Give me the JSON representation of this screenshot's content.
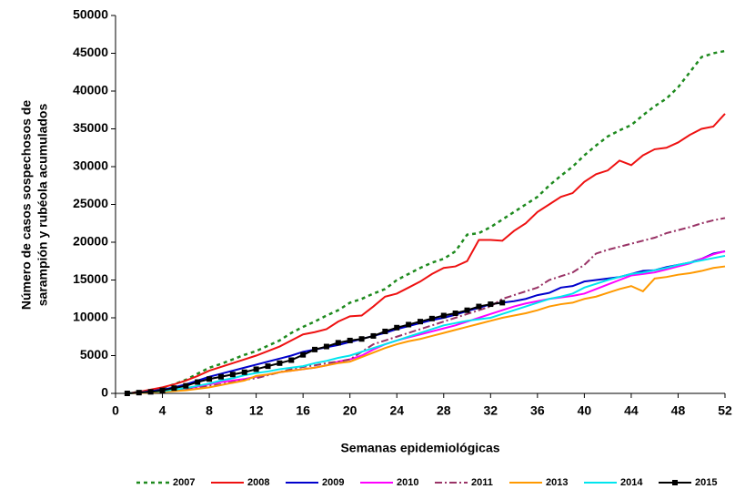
{
  "chart_data": {
    "type": "line",
    "xlabel": "Semanas epidemiológicas",
    "ylabel": [
      "Número de casos sospechosos de",
      "sarampión y rubéola acumulados"
    ],
    "x": [
      1,
      2,
      3,
      4,
      5,
      6,
      7,
      8,
      9,
      10,
      11,
      12,
      13,
      14,
      15,
      16,
      17,
      18,
      19,
      20,
      21,
      22,
      23,
      24,
      25,
      26,
      27,
      28,
      29,
      30,
      31,
      32,
      33,
      34,
      35,
      36,
      37,
      38,
      39,
      40,
      41,
      42,
      43,
      44,
      45,
      46,
      47,
      48,
      49,
      50,
      51,
      52
    ],
    "xlim": [
      0,
      52
    ],
    "xticks": [
      0,
      4,
      8,
      12,
      16,
      20,
      24,
      28,
      32,
      36,
      40,
      44,
      48,
      52
    ],
    "ylim": [
      0,
      50000
    ],
    "yticks": [
      0,
      5000,
      10000,
      15000,
      20000,
      25000,
      30000,
      35000,
      40000,
      45000,
      50000
    ],
    "grid": false,
    "legend": "bottom",
    "series": [
      {
        "name": "2007",
        "color": "#1e8a1e",
        "dash": "dotted",
        "values": [
          0,
          200,
          400,
          700,
          1200,
          1800,
          2600,
          3400,
          3900,
          4500,
          5100,
          5600,
          6300,
          7000,
          8000,
          8800,
          9500,
          10300,
          11000,
          12000,
          12500,
          13200,
          13800,
          15000,
          15800,
          16600,
          17300,
          17800,
          18800,
          21000,
          21200,
          22000,
          23000,
          24000,
          25000,
          26000,
          27500,
          28800,
          30000,
          31500,
          32800,
          34000,
          34800,
          35500,
          36800,
          38000,
          39000,
          40500,
          42500,
          44500,
          45000,
          45300
        ]
      },
      {
        "name": "2008",
        "color": "#ee1111",
        "dash": "solid",
        "values": [
          0,
          200,
          500,
          800,
          1200,
          1700,
          2300,
          3000,
          3500,
          4000,
          4500,
          5000,
          5600,
          6200,
          7000,
          7800,
          8100,
          8500,
          9500,
          10200,
          10300,
          11500,
          12800,
          13200,
          14000,
          14800,
          15800,
          16600,
          16800,
          17500,
          20300,
          20300,
          20200,
          21500,
          22500,
          24000,
          25000,
          26000,
          26500,
          28000,
          29000,
          29500,
          30800,
          30200,
          31500,
          32300,
          32500,
          33200,
          34200,
          35000,
          35300,
          37000
        ]
      },
      {
        "name": "2009",
        "color": "#0000cc",
        "dash": "solid",
        "values": [
          0,
          100,
          300,
          500,
          800,
          1200,
          1700,
          2200,
          2600,
          3000,
          3400,
          3800,
          4200,
          4600,
          5000,
          5500,
          5800,
          6100,
          6400,
          6800,
          7200,
          7600,
          8000,
          8500,
          8900,
          9300,
          9700,
          10000,
          10400,
          10900,
          11300,
          11800,
          12000,
          12200,
          12500,
          13000,
          13300,
          14000,
          14200,
          14800,
          15000,
          15200,
          15400,
          15800,
          16200,
          16300,
          16700,
          17000,
          17300,
          17800,
          18500,
          18800
        ]
      },
      {
        "name": "2010",
        "color": "#ff00ff",
        "dash": "solid",
        "values": [
          0,
          100,
          200,
          300,
          400,
          600,
          900,
          1200,
          1500,
          1700,
          1900,
          2200,
          2500,
          2800,
          3000,
          3200,
          3400,
          3700,
          4200,
          4500,
          5000,
          5800,
          6500,
          7000,
          7400,
          7800,
          8200,
          8600,
          9000,
          9500,
          10000,
          10500,
          11000,
          11500,
          11900,
          12200,
          12500,
          12700,
          12900,
          13200,
          13800,
          14400,
          15000,
          15600,
          15800,
          16000,
          16400,
          16800,
          17200,
          17800,
          18400,
          18800
        ]
      },
      {
        "name": "2011",
        "color": "#993366",
        "dash": "dashdot",
        "values": [
          0,
          100,
          200,
          300,
          400,
          500,
          700,
          1000,
          1200,
          1500,
          1800,
          2000,
          2400,
          2800,
          3200,
          3500,
          3700,
          4000,
          4200,
          4500,
          5500,
          6500,
          7000,
          7500,
          8000,
          8500,
          9000,
          9500,
          10000,
          10500,
          11000,
          11500,
          12500,
          13000,
          13500,
          14000,
          15000,
          15500,
          16000,
          17000,
          18500,
          19000,
          19400,
          19800,
          20200,
          20600,
          21200,
          21600,
          22000,
          22500,
          22900,
          23200
        ]
      },
      {
        "name": "2013",
        "color": "#ff9900",
        "dash": "solid",
        "values": [
          0,
          50,
          100,
          200,
          300,
          400,
          600,
          800,
          1100,
          1400,
          1700,
          2300,
          2500,
          2800,
          3000,
          3200,
          3400,
          3700,
          4000,
          4200,
          4800,
          5400,
          6000,
          6500,
          6900,
          7200,
          7600,
          8000,
          8400,
          8800,
          9200,
          9600,
          10000,
          10300,
          10600,
          11000,
          11500,
          11800,
          12000,
          12500,
          12800,
          13300,
          13800,
          14200,
          13500,
          15200,
          15400,
          15700,
          15900,
          16200,
          16600,
          16800
        ]
      },
      {
        "name": "2014",
        "color": "#00e5ee",
        "dash": "solid",
        "values": [
          0,
          100,
          200,
          300,
          500,
          700,
          1000,
          1300,
          1700,
          2000,
          2400,
          2700,
          2900,
          3200,
          3400,
          3600,
          4000,
          4300,
          4700,
          5000,
          5500,
          6000,
          6500,
          7000,
          7500,
          8000,
          8500,
          9000,
          9300,
          9600,
          9800,
          10000,
          10500,
          11000,
          11500,
          12000,
          12500,
          12800,
          13200,
          14000,
          14500,
          15000,
          15400,
          15800,
          16000,
          16300,
          16600,
          17000,
          17300,
          17600,
          17900,
          18200
        ]
      },
      {
        "name": "2015",
        "color": "#000000",
        "dash": "solid",
        "marker": "square",
        "values": [
          0,
          100,
          200,
          400,
          700,
          1000,
          1500,
          1900,
          2200,
          2500,
          2800,
          3200,
          3600,
          4000,
          4400,
          5100,
          5800,
          6200,
          6700,
          7000,
          7200,
          7600,
          8200,
          8700,
          9100,
          9500,
          9900,
          10300,
          10600,
          11000,
          11500,
          11800,
          12000,
          null,
          null,
          null,
          null,
          null,
          null,
          null,
          null,
          null,
          null,
          null,
          null,
          null,
          null,
          null,
          null,
          null,
          null,
          null
        ]
      }
    ]
  }
}
